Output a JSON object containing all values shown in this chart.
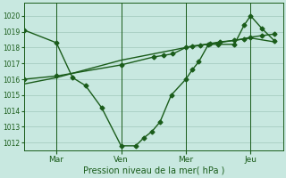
{
  "bg_color": "#c8e8e0",
  "grid_color": "#a0c8bc",
  "line_color": "#1a5c1a",
  "xlabel": "Pression niveau de la mer( hPa )",
  "ylim": [
    1011.5,
    1020.8
  ],
  "yticks": [
    1012,
    1013,
    1014,
    1015,
    1016,
    1017,
    1018,
    1019,
    1020
  ],
  "xtick_labels": [
    "Mar",
    "Ven",
    "Mer",
    "Jeu"
  ],
  "xtick_pos": [
    1,
    3,
    5,
    7
  ],
  "xlim": [
    0,
    8
  ],
  "s1_x": [
    0.0,
    1.0,
    1.5,
    1.9,
    2.4,
    3.0,
    3.45,
    3.7,
    3.95,
    4.2,
    4.55,
    5.0,
    5.2,
    5.4,
    5.7,
    6.0,
    6.5,
    6.8,
    7.0,
    7.35,
    7.75
  ],
  "s1_y": [
    1019.1,
    1018.3,
    1016.1,
    1015.6,
    1014.2,
    1011.8,
    1011.8,
    1012.3,
    1012.7,
    1013.3,
    1015.0,
    1016.0,
    1016.6,
    1017.1,
    1018.2,
    1018.2,
    1018.2,
    1019.4,
    1020.0,
    1019.2,
    1018.4
  ],
  "s2_x": [
    0.0,
    1.0,
    3.0,
    4.0,
    4.3,
    4.6,
    5.0,
    5.2,
    5.45,
    5.75,
    6.05,
    6.5,
    6.8,
    7.0,
    7.35,
    7.75
  ],
  "s2_y": [
    1016.0,
    1016.2,
    1016.9,
    1017.4,
    1017.5,
    1017.6,
    1018.0,
    1018.1,
    1018.15,
    1018.25,
    1018.35,
    1018.45,
    1018.55,
    1018.65,
    1018.75,
    1018.85
  ],
  "s3_x": [
    0.0,
    1.0,
    3.0,
    5.0,
    7.0,
    7.75
  ],
  "s3_y": [
    1015.7,
    1016.1,
    1017.2,
    1018.0,
    1018.6,
    1018.35
  ],
  "vline_pos": [
    1,
    3,
    5,
    7
  ],
  "ms": 2.5,
  "lw": 1.0
}
